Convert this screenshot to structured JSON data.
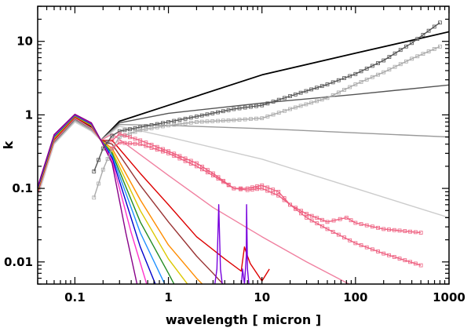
{
  "chart_data": {
    "type": "line",
    "title": "",
    "xlabel": "wavelength [ micron ]",
    "ylabel": "k",
    "xscale": "log",
    "yscale": "log",
    "xlim": [
      0.04,
      1000
    ],
    "ylim": [
      0.005,
      30
    ],
    "grid": false,
    "legend": "none",
    "xticks": [
      {
        "value": 0.1,
        "label": "0.1"
      },
      {
        "value": 1,
        "label": "1"
      },
      {
        "value": 10,
        "label": "10"
      },
      {
        "value": 100,
        "label": "100"
      },
      {
        "value": 1000,
        "label": "1000"
      }
    ],
    "yticks": [
      {
        "value": 0.01,
        "label": "0.01"
      },
      {
        "value": 0.1,
        "label": "0.1"
      },
      {
        "value": 1,
        "label": "1"
      },
      {
        "value": 10,
        "label": "10"
      }
    ],
    "series": [
      {
        "color": "#000000",
        "marker": "none",
        "x": [
          0.04,
          0.06,
          0.1,
          0.15,
          0.19,
          0.3,
          1,
          10,
          100,
          1000
        ],
        "y": [
          0.09,
          0.45,
          0.92,
          0.68,
          0.45,
          0.82,
          1.35,
          3.5,
          6.9,
          13.5
        ]
      },
      {
        "color": "#555555",
        "marker": "none",
        "x": [
          0.04,
          0.06,
          0.1,
          0.15,
          0.19,
          0.3,
          1,
          10,
          100,
          1000
        ],
        "y": [
          0.085,
          0.43,
          0.88,
          0.65,
          0.45,
          0.78,
          1.05,
          1.45,
          1.9,
          2.55
        ]
      },
      {
        "color": "#999999",
        "marker": "none",
        "x": [
          0.04,
          0.06,
          0.1,
          0.15,
          0.19,
          0.3,
          1,
          10,
          100,
          1000
        ],
        "y": [
          0.08,
          0.41,
          0.84,
          0.62,
          0.45,
          0.74,
          0.72,
          0.65,
          0.57,
          0.5
        ]
      },
      {
        "color": "#cccccc",
        "marker": "none",
        "x": [
          0.04,
          0.06,
          0.1,
          0.15,
          0.19,
          0.3,
          1,
          10,
          100,
          1000
        ],
        "y": [
          0.075,
          0.4,
          0.8,
          0.6,
          0.45,
          0.7,
          0.5,
          0.25,
          0.1,
          0.04
        ]
      },
      {
        "color": "#f080a0",
        "marker": "none",
        "x": [
          0.04,
          0.06,
          0.1,
          0.15,
          0.19,
          0.25,
          1,
          3,
          10,
          30,
          100
        ],
        "y": [
          0.085,
          0.44,
          0.9,
          0.66,
          0.45,
          0.55,
          0.15,
          0.055,
          0.022,
          0.01,
          0.0045
        ]
      },
      {
        "color": "#dd0000",
        "marker": "none",
        "x": [
          0.04,
          0.06,
          0.1,
          0.15,
          0.19,
          0.25,
          0.5,
          1,
          2,
          4,
          6,
          6.5,
          7,
          7.5,
          10,
          12
        ],
        "y": [
          0.09,
          0.46,
          0.93,
          0.7,
          0.45,
          0.45,
          0.16,
          0.06,
          0.022,
          0.011,
          0.0075,
          0.016,
          0.012,
          0.0095,
          0.0055,
          0.008
        ]
      },
      {
        "color": "#993333",
        "marker": "none",
        "x": [
          0.04,
          0.06,
          0.1,
          0.15,
          0.19,
          0.25,
          0.5,
          1,
          2,
          3,
          4.5
        ],
        "y": [
          0.09,
          0.47,
          0.95,
          0.71,
          0.45,
          0.4,
          0.11,
          0.035,
          0.012,
          0.007,
          0.004
        ]
      },
      {
        "color": "#ff8c00",
        "marker": "none",
        "x": [
          0.04,
          0.06,
          0.1,
          0.15,
          0.19,
          0.25,
          0.5,
          1,
          2,
          2.5
        ],
        "y": [
          0.095,
          0.48,
          0.96,
          0.72,
          0.45,
          0.35,
          0.07,
          0.017,
          0.006,
          0.0045
        ]
      },
      {
        "color": "#dcc800",
        "marker": "none",
        "x": [
          0.04,
          0.06,
          0.1,
          0.15,
          0.19,
          0.25,
          0.5,
          1,
          1.7
        ],
        "y": [
          0.095,
          0.49,
          0.97,
          0.73,
          0.45,
          0.32,
          0.05,
          0.011,
          0.0045
        ]
      },
      {
        "color": "#228b22",
        "marker": "none",
        "x": [
          0.04,
          0.06,
          0.1,
          0.15,
          0.19,
          0.25,
          0.5,
          1,
          1.2
        ],
        "y": [
          0.1,
          0.5,
          0.98,
          0.74,
          0.45,
          0.3,
          0.035,
          0.007,
          0.0045
        ]
      },
      {
        "color": "#1e90ff",
        "marker": "none",
        "x": [
          0.04,
          0.06,
          0.1,
          0.15,
          0.19,
          0.25,
          0.5,
          0.95
        ],
        "y": [
          0.1,
          0.51,
          0.99,
          0.75,
          0.45,
          0.28,
          0.025,
          0.0045
        ]
      },
      {
        "color": "#0000cc",
        "marker": "none",
        "x": [
          0.04,
          0.06,
          0.1,
          0.15,
          0.19,
          0.25,
          0.5,
          0.75
        ],
        "y": [
          0.1,
          0.52,
          1.0,
          0.76,
          0.45,
          0.26,
          0.016,
          0.0045
        ]
      },
      {
        "color": "#ff33cc",
        "marker": "none",
        "x": [
          0.04,
          0.06,
          0.1,
          0.15,
          0.19,
          0.25,
          0.4,
          0.6
        ],
        "y": [
          0.105,
          0.53,
          1.01,
          0.77,
          0.45,
          0.24,
          0.025,
          0.0045
        ]
      },
      {
        "color": "#880088",
        "marker": "none",
        "x": [
          0.04,
          0.06,
          0.1,
          0.15,
          0.19,
          0.25,
          0.35,
          0.47
        ],
        "y": [
          0.105,
          0.54,
          1.02,
          0.78,
          0.45,
          0.22,
          0.025,
          0.0045
        ]
      },
      {
        "color": "#7700dd",
        "marker": "none",
        "x": [
          3.1,
          3.3,
          3.4,
          3.45,
          3.5,
          3.6,
          3.8,
          6.0,
          6.2,
          6.5,
          6.8,
          6.85,
          6.9,
          7.0,
          7.3
        ],
        "y": [
          0.0045,
          0.008,
          0.03,
          0.06,
          0.03,
          0.008,
          0.0045,
          0.0045,
          0.008,
          0.005,
          0.012,
          0.06,
          0.03,
          0.008,
          0.0045
        ]
      },
      {
        "color": "#555555",
        "marker": "square",
        "x": [
          0.16,
          0.2,
          0.25,
          0.3,
          0.5,
          1,
          2,
          5,
          10,
          20,
          50,
          100,
          200,
          400,
          800
        ],
        "y": [
          0.17,
          0.35,
          0.52,
          0.6,
          0.68,
          0.8,
          0.95,
          1.2,
          1.35,
          1.8,
          2.6,
          3.6,
          5.5,
          9.5,
          18
        ]
      },
      {
        "color": "#aaaaaa",
        "marker": "square",
        "x": [
          0.16,
          0.2,
          0.25,
          0.3,
          0.5,
          1,
          2,
          5,
          10,
          20,
          50,
          100,
          200,
          400,
          800
        ],
        "y": [
          0.075,
          0.18,
          0.35,
          0.5,
          0.62,
          0.72,
          0.8,
          0.85,
          0.9,
          1.2,
          1.7,
          2.6,
          3.8,
          5.8,
          8.5
        ]
      },
      {
        "color": "#ee6080",
        "marker": "square",
        "x": [
          0.25,
          0.3,
          0.5,
          1,
          2,
          3,
          5,
          7,
          10,
          15,
          20,
          30,
          50,
          80,
          100,
          200,
          500
        ],
        "y": [
          0.35,
          0.42,
          0.4,
          0.3,
          0.2,
          0.15,
          0.1,
          0.095,
          0.1,
          0.08,
          0.06,
          0.045,
          0.035,
          0.04,
          0.034,
          0.028,
          0.025
        ]
      },
      {
        "color": "#ee6080",
        "marker": "square",
        "x": [
          0.25,
          0.3,
          0.5,
          1,
          2,
          3,
          5,
          7,
          10,
          15,
          20,
          30,
          50,
          100,
          200,
          500
        ],
        "y": [
          0.45,
          0.55,
          0.45,
          0.32,
          0.22,
          0.16,
          0.1,
          0.1,
          0.11,
          0.09,
          0.06,
          0.04,
          0.028,
          0.018,
          0.013,
          0.009
        ]
      }
    ]
  }
}
